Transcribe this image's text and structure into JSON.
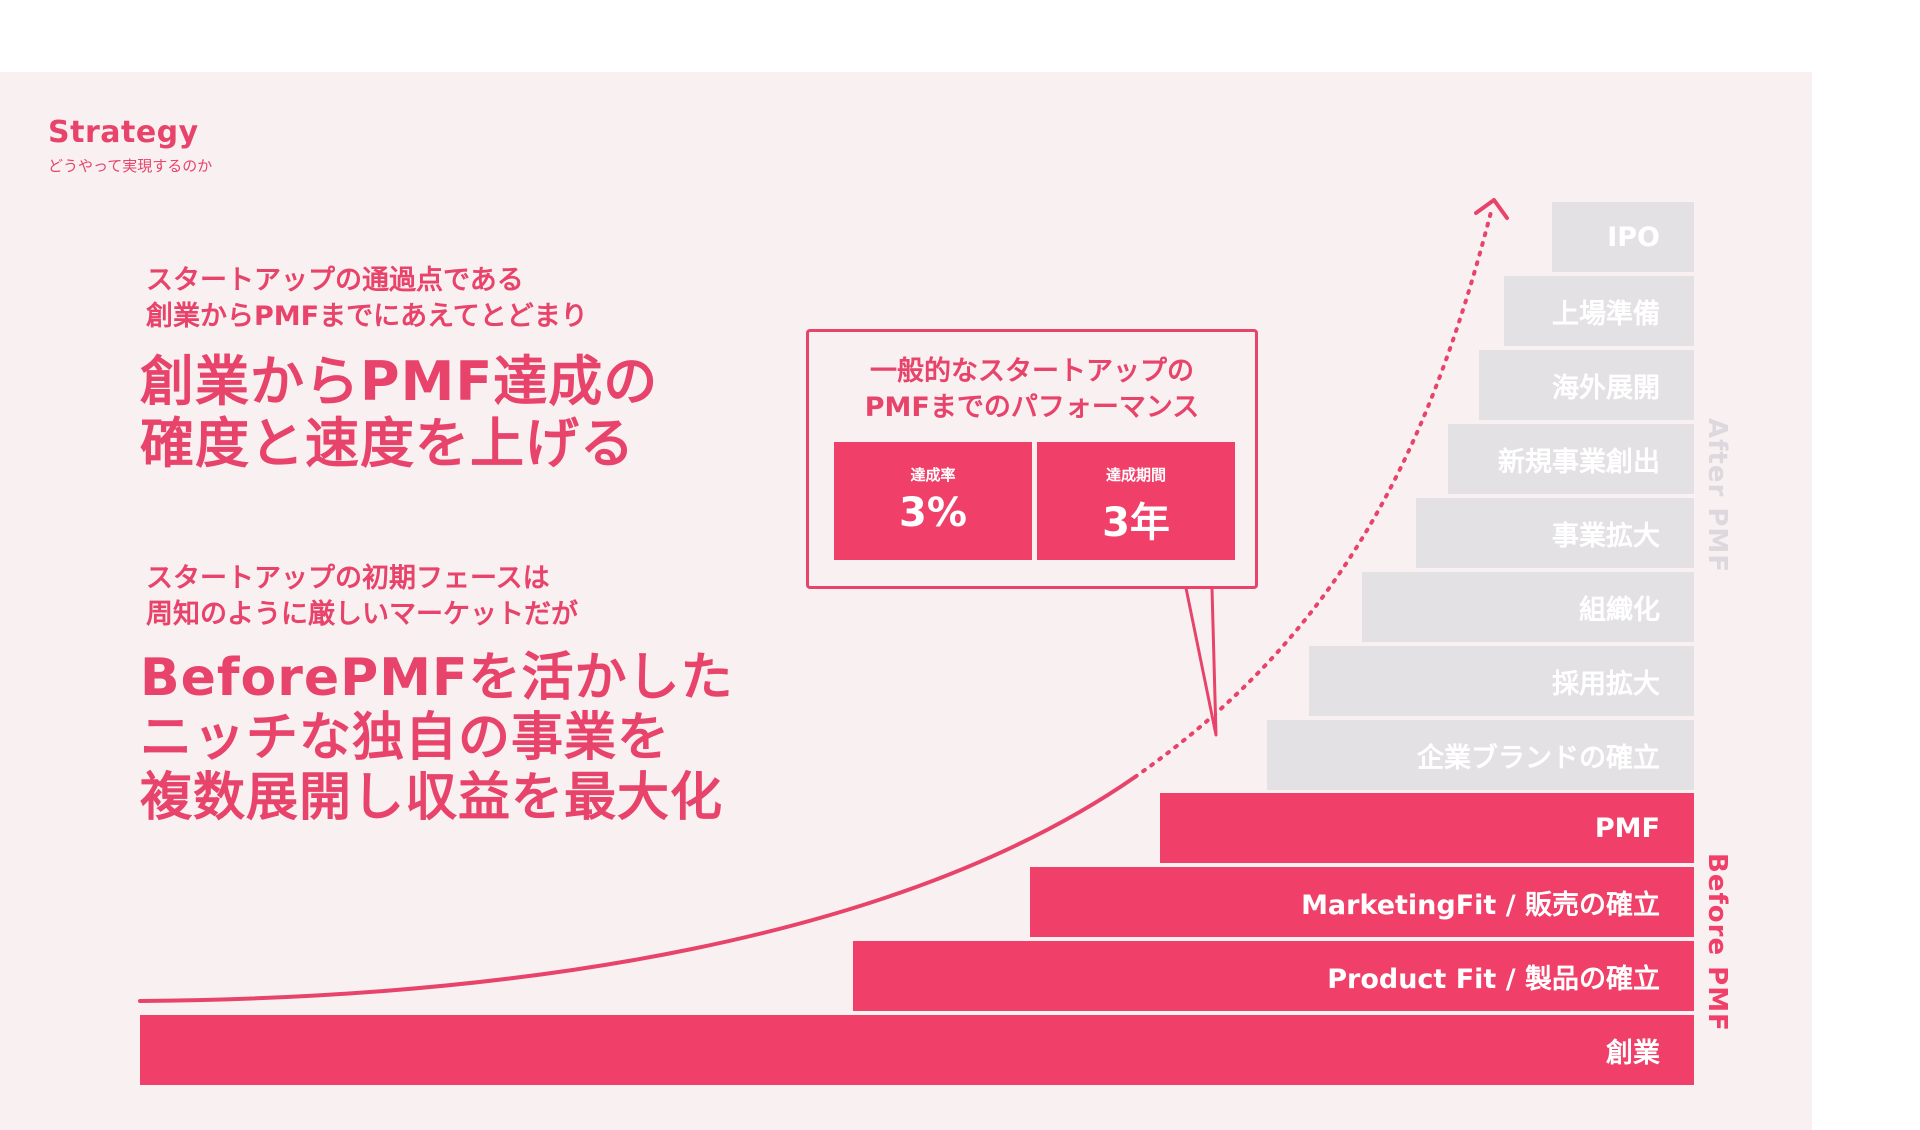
{
  "header": {
    "title": "Strategy",
    "subtitle": "どうやって実現するのか"
  },
  "statement1": {
    "lead_line1": "スタートアップの通過点である",
    "lead_line2": "創業からPMFまでにあえてとどまり",
    "head_line1": "創業からPMF達成の",
    "head_line2": "確度と速度を上げる"
  },
  "statement2": {
    "lead_line1": "スタートアップの初期フェースは",
    "lead_line2": "周知のように厳しいマーケットだが",
    "head_line1": "BeforePMFを活かした",
    "head_line2": "ニッチな独自の事業を",
    "head_line3": "複数展開し収益を最大化"
  },
  "callout": {
    "title_line1": "一般的なスタートアップの",
    "title_line2": "PMFまでのパフォーマンス",
    "stats": [
      {
        "label": "達成率",
        "value": "3%"
      },
      {
        "label": "達成期間",
        "value": "3年"
      }
    ]
  },
  "steps": {
    "after_pmf": [
      "IPO",
      "上場準備",
      "海外展開",
      "新規事業創出",
      "事業拡大",
      "組織化",
      "採用拡大",
      "企業ブランドの確立"
    ],
    "before_pmf": [
      "PMF",
      "MarketingFit / 販売の確立",
      "Product Fit / 製品の確立",
      "創業"
    ]
  },
  "phases": {
    "after": "After PMF",
    "before": "Before PMF"
  },
  "colors": {
    "accent": "#f03f68",
    "text_accent": "#e8436a",
    "grey_step": "#e4e1e5",
    "panel": "#f9f1f1"
  }
}
